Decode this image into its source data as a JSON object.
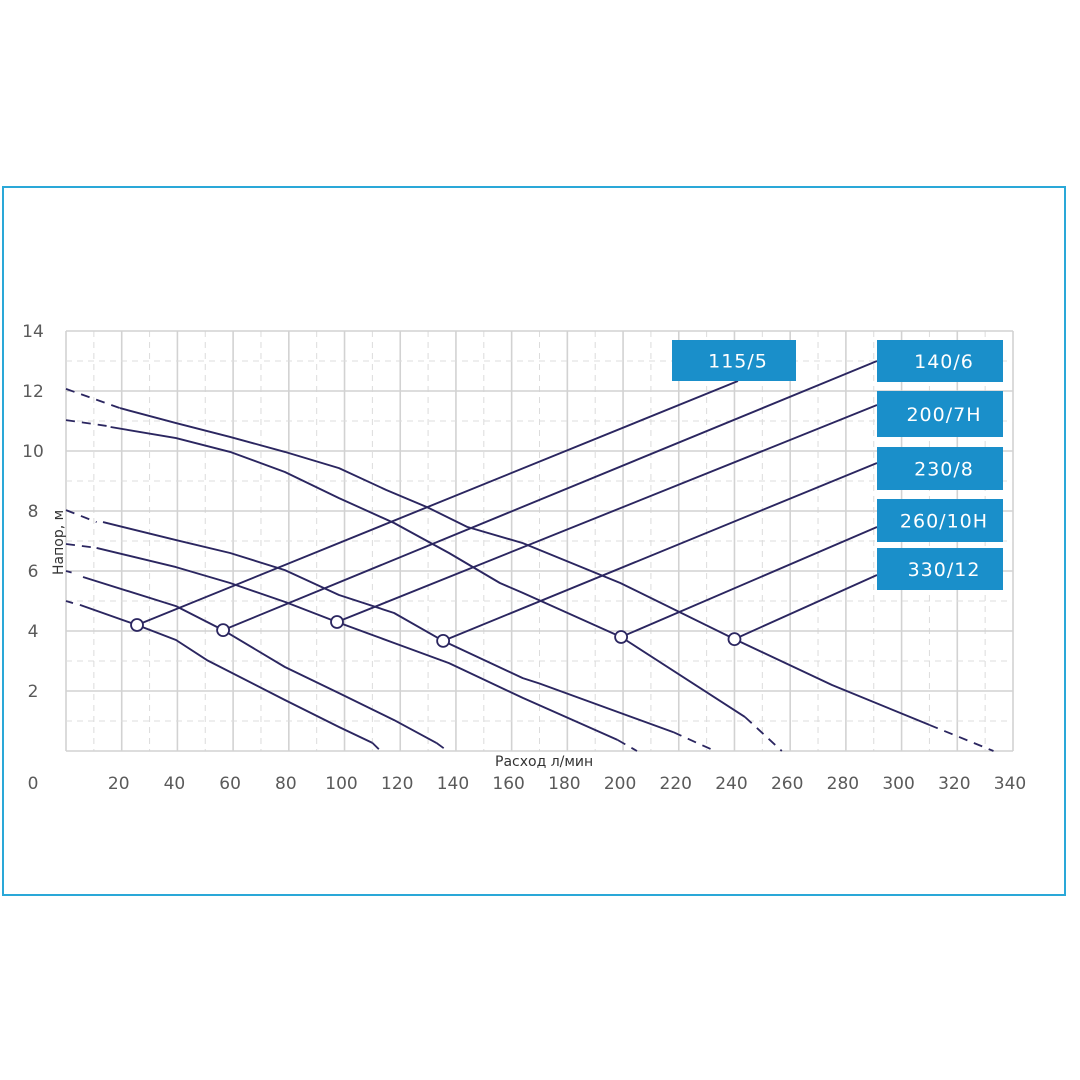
{
  "chart_data": {
    "type": "line",
    "title": "",
    "xlabel": "Расход л/мин",
    "ylabel": "Напор, м",
    "xlim": [
      0,
      340
    ],
    "ylim": [
      0,
      14
    ],
    "x_ticks": [
      "0",
      "20",
      "40",
      "60",
      "80",
      "100",
      "120",
      "140",
      "160",
      "180",
      "200",
      "220",
      "240",
      "260",
      "280",
      "300",
      "320",
      "340"
    ],
    "y_ticks": [
      "2",
      "4",
      "6",
      "8",
      "10",
      "12",
      "14"
    ],
    "grid": true,
    "label_color": "#1a8fca",
    "line_color": "#2b2660",
    "frame_color": "#2aa8d8",
    "series": [
      {
        "name": "115/5",
        "dashed_start": [
          [
            0,
            5.0
          ],
          [
            2.5,
            4.93
          ]
        ],
        "solid": [
          [
            5,
            4.87
          ],
          [
            25.5,
            4.2
          ],
          [
            39.5,
            3.7
          ],
          [
            50.6,
            3.03
          ],
          [
            78.6,
            1.7
          ],
          [
            98,
            0.8
          ],
          [
            110,
            0.27
          ]
        ],
        "dashed_end": [
          [
            110,
            0.27
          ],
          [
            113,
            0
          ]
        ],
        "marker": [
          25.5,
          4.2
        ]
      },
      {
        "name": "140/6",
        "dashed_start": [
          [
            0,
            6.0
          ],
          [
            2,
            5.95
          ]
        ],
        "solid": [
          [
            6.1,
            5.8
          ],
          [
            39.5,
            4.83
          ],
          [
            56.4,
            4.03
          ],
          [
            78.6,
            2.8
          ],
          [
            98,
            1.93
          ],
          [
            117.8,
            1.03
          ],
          [
            133,
            0.27
          ]
        ],
        "dashed_end": [
          [
            133,
            0.27
          ],
          [
            137,
            0
          ]
        ],
        "marker": [
          56.4,
          4.03
        ]
      },
      {
        "name": "200/7H",
        "dashed_start": [
          [
            0,
            6.9
          ],
          [
            11,
            6.77
          ]
        ],
        "solid": [
          [
            11,
            6.77
          ],
          [
            39.5,
            6.13
          ],
          [
            58.9,
            5.6
          ],
          [
            78.6,
            4.97
          ],
          [
            97.3,
            4.3
          ],
          [
            117.8,
            3.6
          ],
          [
            137.5,
            2.93
          ],
          [
            164,
            1.77
          ],
          [
            198,
            0.37
          ]
        ],
        "dashed_end": [
          [
            198,
            0.37
          ],
          [
            205,
            0
          ]
        ],
        "marker": [
          97.3,
          4.3
        ]
      },
      {
        "name": "230/8",
        "dashed_start": [
          [
            0,
            8.03
          ],
          [
            11,
            7.63
          ]
        ],
        "solid": [
          [
            13.3,
            7.63
          ],
          [
            39.5,
            7.03
          ],
          [
            58.9,
            6.6
          ],
          [
            78.6,
            6.03
          ],
          [
            98,
            5.2
          ],
          [
            117.8,
            4.6
          ],
          [
            135.4,
            3.67
          ],
          [
            164,
            2.43
          ],
          [
            170,
            2.25
          ],
          [
            218,
            0.63
          ]
        ],
        "dashed_end": [
          [
            218,
            0.63
          ],
          [
            233,
            0
          ]
        ],
        "marker": [
          135.4,
          3.67
        ]
      },
      {
        "name": "260/10H",
        "dashed_start": [
          [
            0,
            11.03
          ],
          [
            15,
            10.83
          ]
        ],
        "solid": [
          [
            16,
            10.8
          ],
          [
            39.5,
            10.43
          ],
          [
            58.9,
            9.97
          ],
          [
            78.6,
            9.3
          ],
          [
            98,
            8.43
          ],
          [
            117.8,
            7.6
          ],
          [
            137.5,
            6.6
          ],
          [
            155.8,
            5.6
          ],
          [
            164,
            5.27
          ],
          [
            199.3,
            3.8
          ],
          [
            243.8,
            1.13
          ]
        ],
        "dashed_end": [
          [
            243.8,
            1.13
          ],
          [
            257,
            0
          ]
        ],
        "marker": [
          199.3,
          3.8
        ]
      },
      {
        "name": "330/12",
        "dashed_start": [
          [
            0,
            12.07
          ],
          [
            19.4,
            11.43
          ]
        ],
        "solid": [
          [
            19.4,
            11.43
          ],
          [
            39.5,
            10.93
          ],
          [
            58.9,
            10.47
          ],
          [
            78.6,
            9.97
          ],
          [
            98,
            9.43
          ],
          [
            115,
            8.7
          ],
          [
            129.6,
            8.13
          ],
          [
            144,
            7.47
          ],
          [
            164,
            6.93
          ],
          [
            199,
            5.6
          ],
          [
            240,
            3.73
          ],
          [
            275,
            2.2
          ],
          [
            310,
            0.87
          ]
        ],
        "dashed_end": [
          [
            310,
            0.87
          ],
          [
            333,
            0
          ]
        ],
        "marker": [
          240,
          3.73
        ]
      }
    ]
  }
}
